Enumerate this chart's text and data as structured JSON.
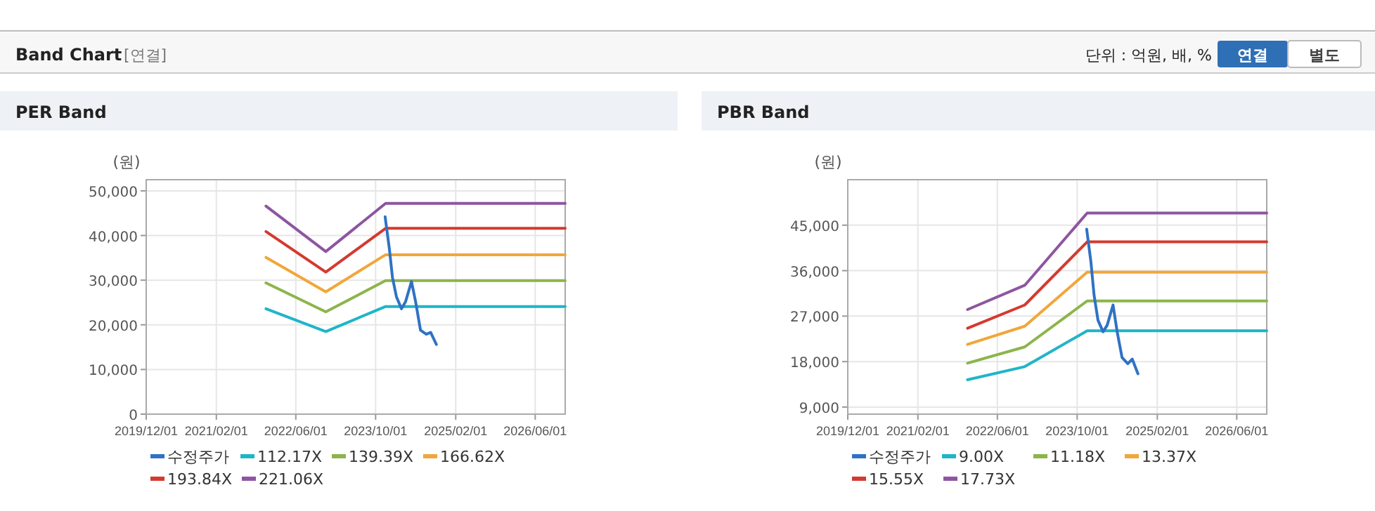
{
  "chart_data": [
    {
      "type": "other",
      "title": "Band Chart",
      "annotations": [
        "[연결]",
        "단위 : 억원, 배, %",
        "연결",
        "별도"
      ]
    },
    {
      "type": "line",
      "title": "PER Band",
      "ylabel": "(원)",
      "xlim": [
        "2019-12-01",
        "2026-12-01"
      ],
      "xticks": [
        {
          "value": "2019-12-01",
          "label": "2019/12/01"
        },
        {
          "value": "2021-02-01",
          "label": "2021/02/01"
        },
        {
          "value": "2022-06-01",
          "label": "2022/06/01"
        },
        {
          "value": "2023-10-01",
          "label": "2023/10/01"
        },
        {
          "value": "2025-02-01",
          "label": "2025/02/01"
        },
        {
          "value": "2026-06-01",
          "label": "2026/06/01"
        }
      ],
      "ylim": [
        0,
        52500
      ],
      "yticks": [
        {
          "value": 0,
          "label": "0"
        },
        {
          "value": 10000,
          "label": "10,000"
        },
        {
          "value": 20000,
          "label": "20,000"
        },
        {
          "value": 30000,
          "label": "30,000"
        },
        {
          "value": 40000,
          "label": "40,000"
        },
        {
          "value": 50000,
          "label": "50,000"
        }
      ],
      "grid": true,
      "legend": "bottom",
      "marker": "none",
      "line_style": "solid",
      "series": [
        {
          "name": "수정주가",
          "color": "#2f72c4",
          "x": [
            "2023-11-28",
            "2023-12-24",
            "2024-01-12",
            "2024-02-05",
            "2024-03-07",
            "2024-04-01",
            "2024-05-07",
            "2024-06-01",
            "2024-07-01",
            "2024-08-05",
            "2024-09-01",
            "2024-10-06"
          ],
          "values": [
            44200,
            37000,
            30600,
            26300,
            23600,
            25200,
            29700,
            25200,
            18800,
            17900,
            18300,
            15600
          ]
        },
        {
          "name": "112.17X",
          "color": "#1fb5c9",
          "x": [
            "2021-12-01",
            "2022-12-01",
            "2023-12-01",
            "2026-12-01"
          ],
          "values": [
            23600,
            18500,
            24100,
            24100
          ]
        },
        {
          "name": "139.39X",
          "color": "#8cb54b",
          "x": [
            "2021-12-01",
            "2022-12-01",
            "2023-12-01",
            "2026-12-01"
          ],
          "values": [
            29400,
            22900,
            29900,
            29900
          ]
        },
        {
          "name": "166.62X",
          "color": "#f0a73a",
          "x": [
            "2021-12-01",
            "2022-12-01",
            "2023-12-01",
            "2026-12-01"
          ],
          "values": [
            35100,
            27400,
            35700,
            35700
          ]
        },
        {
          "name": "193.84X",
          "color": "#d43a2f",
          "x": [
            "2021-12-01",
            "2022-12-01",
            "2023-12-01",
            "2026-12-01"
          ],
          "values": [
            40900,
            31800,
            41600,
            41600
          ]
        },
        {
          "name": "221.06X",
          "color": "#8e55a0",
          "x": [
            "2021-12-01",
            "2022-12-01",
            "2023-12-01",
            "2026-12-01"
          ],
          "values": [
            46600,
            36400,
            47200,
            47200
          ]
        }
      ]
    },
    {
      "type": "line",
      "title": "PBR Band",
      "ylabel": "(원)",
      "xlim": [
        "2019-12-01",
        "2026-12-01"
      ],
      "xticks": [
        {
          "value": "2019-12-01",
          "label": "2019/12/01"
        },
        {
          "value": "2021-02-01",
          "label": "2021/02/01"
        },
        {
          "value": "2022-06-01",
          "label": "2022/06/01"
        },
        {
          "value": "2023-10-01",
          "label": "2023/10/01"
        },
        {
          "value": "2025-02-01",
          "label": "2025/02/01"
        },
        {
          "value": "2026-06-01",
          "label": "2026/06/01"
        }
      ],
      "ylim": [
        7600,
        54000
      ],
      "yticks": [
        {
          "value": 9000,
          "label": "9,000"
        },
        {
          "value": 18000,
          "label": "18,000"
        },
        {
          "value": 27000,
          "label": "27,000"
        },
        {
          "value": 36000,
          "label": "36,000"
        },
        {
          "value": 45000,
          "label": "45,000"
        }
      ],
      "grid": true,
      "legend": "bottom",
      "marker": "none",
      "line_style": "solid",
      "series": [
        {
          "name": "수정주가",
          "color": "#2f72c4",
          "x": [
            "2023-11-28",
            "2023-12-24",
            "2024-01-12",
            "2024-02-05",
            "2024-03-07",
            "2024-04-01",
            "2024-05-07",
            "2024-06-01",
            "2024-07-01",
            "2024-08-05",
            "2024-09-01",
            "2024-10-06"
          ],
          "values": [
            44200,
            37700,
            31200,
            26200,
            23900,
            25200,
            29200,
            23900,
            18800,
            17600,
            18500,
            15600
          ]
        },
        {
          "name": "9.00X",
          "color": "#1fb5c9",
          "x": [
            "2021-12-01",
            "2022-11-15",
            "2023-12-01",
            "2026-12-01"
          ],
          "values": [
            14400,
            17000,
            24100,
            24100
          ]
        },
        {
          "name": "11.18X",
          "color": "#8cb54b",
          "x": [
            "2021-12-01",
            "2022-11-15",
            "2023-12-01",
            "2026-12-01"
          ],
          "values": [
            17700,
            20900,
            30000,
            30000
          ]
        },
        {
          "name": "13.37X",
          "color": "#f0a73a",
          "x": [
            "2021-12-01",
            "2022-11-15",
            "2023-12-01",
            "2026-12-01"
          ],
          "values": [
            21400,
            25000,
            35700,
            35700
          ]
        },
        {
          "name": "15.55X",
          "color": "#d43a2f",
          "x": [
            "2021-12-01",
            "2022-11-15",
            "2023-12-01",
            "2026-12-01"
          ],
          "values": [
            24600,
            29200,
            41700,
            41700
          ]
        },
        {
          "name": "17.73X",
          "color": "#8e55a0",
          "x": [
            "2021-12-01",
            "2022-11-15",
            "2023-12-01",
            "2026-12-01"
          ],
          "values": [
            28300,
            33100,
            47400,
            47400
          ]
        }
      ]
    }
  ]
}
